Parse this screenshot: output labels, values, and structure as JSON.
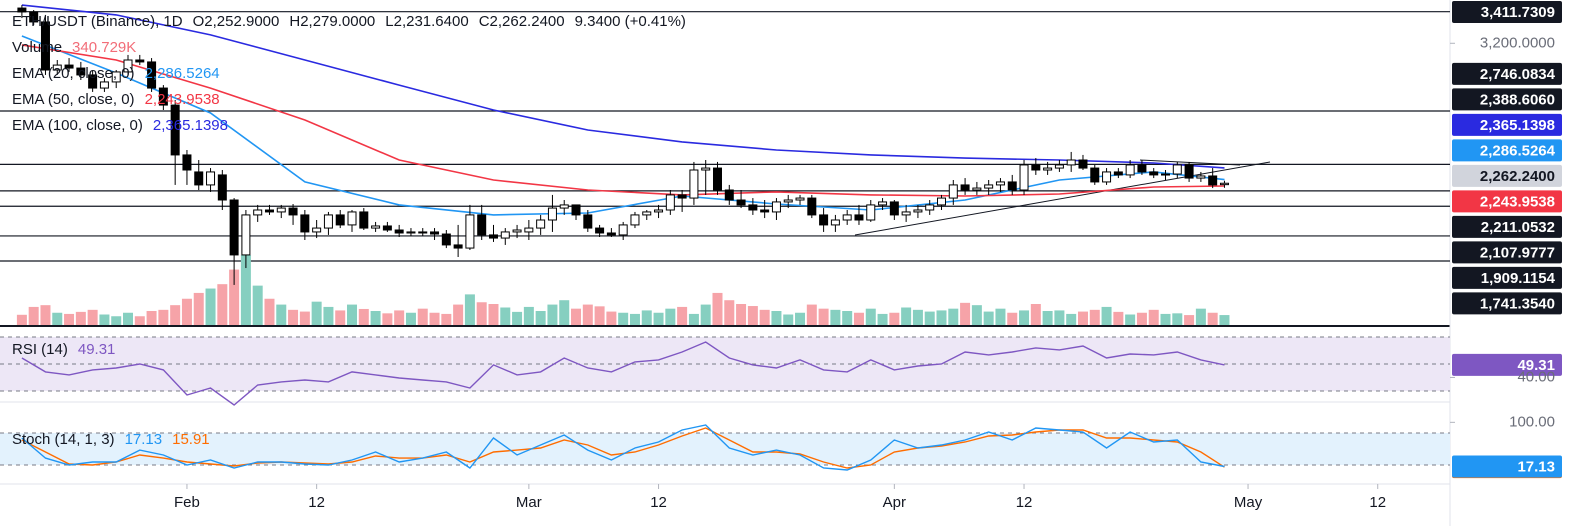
{
  "chart_data": [
    {
      "type": "candlestick",
      "title": "ETH/USDT (Binance), 1D",
      "header": [
        "O2,252.9000",
        "H2,279.0000",
        "L2,231.6400",
        "C2,262.2400",
        "9.3400 (+0.41%)"
      ],
      "xlim": [
        -1.857,
        121.13
      ],
      "xticks": [
        {
          "value": 14,
          "label": "Feb"
        },
        {
          "value": 25,
          "label": "12"
        },
        {
          "value": 43,
          "label": "Mar"
        },
        {
          "value": 54,
          "label": "12"
        },
        {
          "value": 74,
          "label": "Apr"
        },
        {
          "value": 85,
          "label": "12"
        },
        {
          "value": 104,
          "label": "May"
        },
        {
          "value": 115,
          "label": "12"
        }
      ],
      "ylim": [
        1312.5,
        3490
      ],
      "yticks": [
        {
          "value": 3200,
          "label": "3,200.0000"
        }
      ],
      "up_color": "#ffffff",
      "down_color": "#000000",
      "open": [
        3436,
        3410,
        3343,
        3021,
        3054,
        3034,
        2988,
        2900,
        2941,
        3008,
        3088,
        3075,
        2900,
        2786,
        2452,
        2338,
        2251,
        2318,
        2150,
        1782,
        2050,
        2083,
        2070,
        2096,
        2050,
        1936,
        1962,
        2050,
        1983,
        2070,
        1962,
        1976,
        1949,
        1929,
        1936,
        1936,
        1922,
        1849,
        1828,
        2050,
        1916,
        1895,
        1936,
        1936,
        1962,
        2016,
        2096,
        2117,
        2050,
        1962,
        1929,
        1916,
        1983,
        2050,
        2070,
        2083,
        2184,
        2163,
        2351,
        2364,
        2217,
        2150,
        2117,
        2083,
        2070,
        2137,
        2150,
        2163,
        2050,
        1983,
        2016,
        2050,
        2016,
        2117,
        2137,
        2050,
        2070,
        2083,
        2117,
        2163,
        2251,
        2217,
        2230,
        2251,
        2271,
        2217,
        2385,
        2351,
        2364,
        2385,
        2418,
        2364,
        2271,
        2338,
        2318,
        2385,
        2338,
        2318,
        2324,
        2385,
        2297,
        2311,
        2252.9
      ],
      "high": [
        3456,
        3423,
        3390,
        3088,
        3101,
        3075,
        3021,
        2967,
        3021,
        3122,
        3122,
        3101,
        2920,
        2820,
        2485,
        2418,
        2364,
        2351,
        2163,
        2083,
        2117,
        2117,
        2117,
        2123,
        2083,
        2016,
        2070,
        2083,
        2083,
        2096,
        2003,
        2003,
        1983,
        1962,
        1962,
        1962,
        1949,
        1983,
        2117,
        2117,
        1983,
        1962,
        1983,
        2016,
        2050,
        2184,
        2150,
        2117,
        2083,
        1983,
        1962,
        2003,
        2070,
        2083,
        2117,
        2217,
        2217,
        2405,
        2418,
        2405,
        2251,
        2217,
        2163,
        2150,
        2163,
        2184,
        2184,
        2184,
        2096,
        2050,
        2083,
        2117,
        2150,
        2163,
        2150,
        2117,
        2117,
        2150,
        2184,
        2284,
        2297,
        2271,
        2284,
        2297,
        2318,
        2418,
        2431,
        2405,
        2418,
        2472,
        2452,
        2385,
        2364,
        2364,
        2418,
        2418,
        2364,
        2351,
        2405,
        2405,
        2338,
        2364,
        2279
      ],
      "low": [
        3369,
        3322,
        2988,
        2988,
        3008,
        2954,
        2874,
        2874,
        2900,
        2988,
        3054,
        2874,
        2753,
        2251,
        2251,
        2217,
        2204,
        2083,
        1581,
        1694,
        2003,
        2050,
        2029,
        1983,
        1882,
        1895,
        1916,
        1962,
        1936,
        1949,
        1936,
        1936,
        1902,
        1909,
        1909,
        1882,
        1828,
        1768,
        1815,
        1882,
        1869,
        1849,
        1895,
        1882,
        1916,
        1936,
        2050,
        2016,
        1936,
        1902,
        1902,
        1882,
        1962,
        2016,
        2029,
        2050,
        2070,
        2117,
        2184,
        2184,
        2117,
        2096,
        2050,
        2029,
        2016,
        2096,
        2117,
        2029,
        1936,
        1936,
        1983,
        1983,
        2003,
        2083,
        2016,
        2003,
        2029,
        2050,
        2083,
        2117,
        2184,
        2184,
        2184,
        2204,
        2184,
        2184,
        2318,
        2318,
        2338,
        2338,
        2351,
        2251,
        2251,
        2297,
        2297,
        2318,
        2297,
        2284,
        2297,
        2271,
        2271,
        2230,
        2231.64
      ],
      "close": [
        3410,
        3343,
        3021,
        3054,
        3034,
        2988,
        2900,
        2941,
        3008,
        3088,
        3075,
        2900,
        2786,
        2452,
        2351,
        2251,
        2338,
        2150,
        1782,
        2050,
        2083,
        2070,
        2096,
        2050,
        1936,
        1962,
        2050,
        1983,
        2070,
        1962,
        1976,
        1949,
        1929,
        1936,
        1929,
        1922,
        1849,
        1828,
        2050,
        1916,
        1895,
        1936,
        1949,
        1962,
        2016,
        2096,
        2117,
        2050,
        1962,
        1929,
        1916,
        1983,
        2050,
        2070,
        2083,
        2184,
        2163,
        2351,
        2364,
        2217,
        2150,
        2117,
        2083,
        2070,
        2137,
        2150,
        2163,
        2050,
        1983,
        2016,
        2050,
        2016,
        2117,
        2137,
        2050,
        2070,
        2083,
        2117,
        2163,
        2251,
        2217,
        2230,
        2251,
        2271,
        2217,
        2385,
        2351,
        2364,
        2385,
        2418,
        2364,
        2271,
        2338,
        2318,
        2385,
        2338,
        2318,
        2324,
        2385,
        2297,
        2311,
        2251,
        2262.24
      ],
      "last_price_label": "2,262.2400",
      "volume": {
        "name": "Volume",
        "value_label": "340.729K",
        "up_color": "#86cfc0",
        "down_color": "#f6a3a8",
        "label_color": "#f26d78",
        "values": [
          350,
          620,
          680,
          420,
          380,
          450,
          520,
          360,
          300,
          420,
          300,
          480,
          520,
          680,
          900,
          1100,
          1250,
          1400,
          1900,
          2400,
          1350,
          900,
          700,
          520,
          460,
          800,
          620,
          500,
          700,
          550,
          480,
          400,
          500,
          420,
          560,
          420,
          380,
          700,
          1050,
          780,
          720,
          600,
          450,
          620,
          480,
          700,
          850,
          560,
          700,
          640,
          460,
          420,
          380,
          500,
          420,
          560,
          620,
          380,
          700,
          1100,
          850,
          720,
          650,
          520,
          480,
          360,
          420,
          700,
          560,
          520,
          480,
          420,
          560,
          380,
          420,
          600,
          520,
          460,
          500,
          560,
          760,
          680,
          460,
          560,
          420,
          500,
          720,
          480,
          500,
          380,
          460,
          520,
          620,
          450,
          360,
          420,
          520,
          380,
          400,
          340,
          560,
          420,
          340.729
        ]
      },
      "series": [
        {
          "name": "EMA (20, close, 0)",
          "color": "#2196f3",
          "last_label": "2,286.5264",
          "x": [
            0,
            8,
            16,
            24,
            32,
            40,
            48,
            56,
            64,
            72,
            80,
            88,
            96,
            102
          ],
          "values": [
            3249,
            3001,
            2733,
            2271,
            2117,
            2050,
            2063,
            2177,
            2123,
            2083,
            2150,
            2284,
            2338,
            2286.5264
          ]
        },
        {
          "name": "EMA (50, close, 0)",
          "color": "#f23645",
          "last_label": "2,243.9538",
          "x": [
            0,
            8,
            16,
            24,
            32,
            40,
            48,
            56,
            64,
            72,
            80,
            88,
            96,
            102
          ],
          "values": [
            3189,
            3088,
            2900,
            2686,
            2418,
            2284,
            2217,
            2184,
            2204,
            2184,
            2177,
            2190,
            2237,
            2243.9538
          ]
        },
        {
          "name": "EMA (100, close, 0)",
          "color": "#2a2ae0",
          "last_label": "2,365.1398",
          "x": [
            0,
            8,
            16,
            24,
            32,
            40,
            48,
            56,
            64,
            72,
            80,
            88,
            96,
            102
          ],
          "values": [
            3456,
            3390,
            3256,
            3088,
            2920,
            2753,
            2619,
            2539,
            2485,
            2452,
            2431,
            2418,
            2398,
            2365.1398
          ]
        }
      ],
      "price_lines": [
        {
          "value": 3411.7309,
          "label": "3,411.7309"
        },
        {
          "value": 2746.0834,
          "label": "2,746.0834"
        },
        {
          "value": 2388.606,
          "label": "2,388.6060"
        },
        {
          "value": 2211.0532,
          "label": "2,211.0532"
        },
        {
          "value": 2107.9777,
          "label": "2,107.9777"
        },
        {
          "value": 1909.1154,
          "label": "1,909.1154"
        },
        {
          "value": 1741.354,
          "label": "1,741.3540"
        }
      ]
    },
    {
      "type": "line",
      "title": "RSI (14)",
      "ylim": [
        23.3,
        77.4
      ],
      "yticks": [
        {
          "value": 40,
          "label": "40.00"
        }
      ],
      "bands": [
        30,
        50,
        70
      ],
      "band_color": "#ede7f6",
      "series": [
        {
          "color": "#7e57c2",
          "x": [
            0,
            2,
            4,
            6,
            8,
            10,
            12,
            14,
            16,
            18,
            20,
            22,
            24,
            26,
            28,
            30,
            32,
            34,
            36,
            38,
            40,
            42,
            44,
            46,
            48,
            50,
            52,
            54,
            56,
            58,
            60,
            62,
            64,
            66,
            68,
            70,
            72,
            74,
            76,
            78,
            80,
            82,
            84,
            86,
            88,
            90,
            92,
            94,
            96,
            98,
            100,
            102
          ],
          "values": [
            54.4,
            44.1,
            41.9,
            45.6,
            47,
            50,
            45.6,
            27,
            32.2,
            19.6,
            34.4,
            36.7,
            38.1,
            36.7,
            44.1,
            41.9,
            39.6,
            38.1,
            36.7,
            32.2,
            49.3,
            41.9,
            44.1,
            54.4,
            47,
            44.1,
            51.5,
            53,
            58.9,
            66.3,
            54.4,
            49.3,
            47,
            53,
            45.6,
            44.1,
            53,
            45.6,
            48.5,
            50,
            58.9,
            56.7,
            58.9,
            61.9,
            60.4,
            63.3,
            54.4,
            57.4,
            56.7,
            58.9,
            53,
            49.31
          ]
        }
      ]
    },
    {
      "type": "line",
      "title": "Stoch (14, 1, 3)",
      "ylim": [
        -11.9,
        134.4
      ],
      "yticks": [
        {
          "value": 100,
          "label": "100.00"
        }
      ],
      "bands": [
        20,
        80
      ],
      "band_color": "#e3f2fd",
      "series": [
        {
          "color": "#ff6d00",
          "x": [
            0,
            2,
            4,
            6,
            8,
            10,
            12,
            14,
            16,
            18,
            20,
            22,
            24,
            26,
            28,
            30,
            32,
            34,
            36,
            38,
            40,
            42,
            44,
            46,
            48,
            50,
            52,
            54,
            56,
            58,
            60,
            62,
            64,
            66,
            68,
            70,
            72,
            74,
            76,
            78,
            80,
            82,
            84,
            86,
            88,
            90,
            92,
            94,
            96,
            98,
            100,
            102
          ],
          "values": [
            66.9,
            44.4,
            21.9,
            20,
            25.6,
            38.8,
            33,
            25.6,
            21.9,
            18.1,
            23.8,
            25.6,
            23.8,
            21.9,
            25.6,
            36.9,
            33,
            33,
            38.8,
            25.6,
            44.4,
            48,
            51.9,
            66.9,
            57.5,
            38.8,
            44.4,
            57.5,
            74.4,
            89.4,
            66.9,
            44.4,
            44.4,
            40.6,
            25.6,
            14.4,
            20,
            44.4,
            51.9,
            55.6,
            63.2,
            74.4,
            76.3,
            81.9,
            85.7,
            85.7,
            70.7,
            70.7,
            66.9,
            63.2,
            44.4,
            15.91
          ]
        },
        {
          "color": "#2196f3",
          "x": [
            0,
            2,
            4,
            6,
            8,
            10,
            12,
            14,
            16,
            18,
            20,
            22,
            24,
            26,
            28,
            30,
            32,
            34,
            36,
            38,
            40,
            42,
            44,
            46,
            48,
            50,
            52,
            54,
            56,
            58,
            60,
            62,
            64,
            66,
            68,
            70,
            72,
            74,
            76,
            78,
            80,
            82,
            84,
            86,
            88,
            90,
            92,
            94,
            96,
            98,
            100,
            102
          ],
          "values": [
            70.7,
            33,
            20,
            25.6,
            25.6,
            48,
            38.8,
            20,
            29.4,
            14.4,
            25.6,
            25.6,
            21.9,
            20,
            29.4,
            44.4,
            25.6,
            33,
            44.4,
            14.4,
            70.7,
            38.8,
            57.5,
            76.3,
            48,
            29.4,
            51.9,
            63.2,
            85.7,
            95,
            51.9,
            38.8,
            48,
            38.8,
            14.4,
            10.6,
            29.4,
            66.9,
            51.9,
            57.5,
            66.9,
            81.9,
            66.9,
            89.4,
            85.7,
            81.9,
            51.9,
            81.9,
            63.2,
            66.9,
            25.6,
            17.13
          ]
        }
      ]
    }
  ]
}
